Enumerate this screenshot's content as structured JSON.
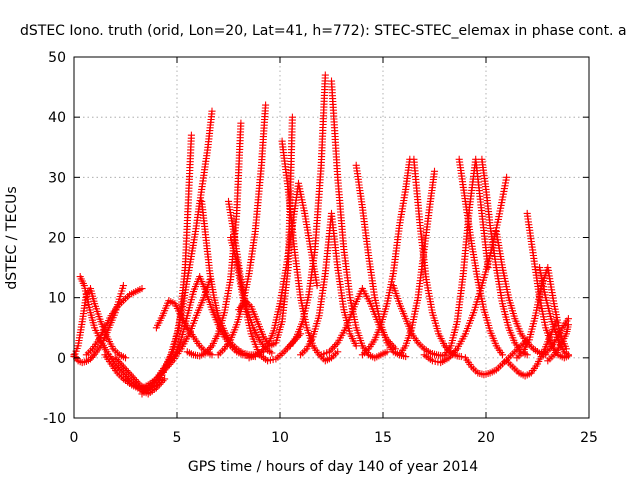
{
  "chart_data": {
    "type": "scatter",
    "title": "dSTEC Iono. truth (orid, Lon=20, Lat=41, h=772): STEC-STEC_elemax in phase cont. a",
    "xlabel": "GPS time / hours of day 140 of year 2014",
    "ylabel": "dSTEC  / TECUs",
    "xlim": [
      0,
      25
    ],
    "ylim": [
      -10,
      50
    ],
    "xticks": [
      0,
      5,
      10,
      15,
      20,
      25
    ],
    "yticks": [
      -10,
      0,
      10,
      20,
      30,
      40,
      50
    ],
    "xtick_labels": [
      "0",
      "5",
      "10",
      "15",
      "20",
      "25"
    ],
    "ytick_labels": [
      "-10",
      "0",
      "10",
      "20",
      "30",
      "40",
      "50"
    ],
    "grid": true,
    "legend": "none",
    "marker": "+",
    "color": "#ff0000",
    "series": [
      {
        "x": [
          0.0,
          0.2,
          0.4,
          0.6,
          0.8,
          1.0,
          1.3,
          1.6,
          2.0,
          2.4
        ],
        "y": [
          0.5,
          -0.5,
          -0.8,
          -0.6,
          -0.2,
          0.6,
          2.0,
          4.2,
          7.5,
          12.0
        ]
      },
      {
        "x": [
          0.0,
          0.2,
          0.4,
          0.6,
          0.8,
          1.0,
          1.3,
          1.6,
          1.9,
          2.2,
          2.5
        ],
        "y": [
          0.2,
          2.0,
          6.0,
          10.5,
          11.5,
          9.0,
          6.0,
          3.5,
          1.5,
          0.5,
          0.0
        ]
      },
      {
        "x": [
          0.3,
          0.5,
          0.8,
          1.0,
          1.3,
          1.6,
          2.0,
          2.4,
          2.8,
          3.2,
          3.6,
          4.0,
          4.4
        ],
        "y": [
          13.5,
          12.0,
          7.5,
          5.0,
          2.8,
          1.0,
          -1.0,
          -2.5,
          -4.0,
          -5.2,
          -6.0,
          -5.0,
          -3.5
        ]
      },
      {
        "x": [
          0.6,
          0.9,
          1.2,
          1.5,
          1.8,
          2.1,
          2.4,
          2.7,
          3.0,
          3.3
        ],
        "y": [
          0.5,
          1.5,
          3.0,
          5.0,
          7.0,
          8.5,
          9.5,
          10.5,
          11.0,
          11.5
        ]
      },
      {
        "x": [
          1.5,
          1.8,
          2.1,
          2.4,
          2.8,
          3.2,
          3.6,
          4.0,
          4.4,
          4.8,
          5.2,
          5.6,
          6.0,
          6.3,
          6.6
        ],
        "y": [
          0.5,
          -1.0,
          -2.5,
          -3.5,
          -4.5,
          -5.2,
          -4.5,
          -3.5,
          -2.0,
          -0.5,
          1.5,
          4.0,
          7.5,
          10.0,
          13.0
        ]
      },
      {
        "x": [
          2.0,
          2.4,
          2.8,
          3.2,
          3.6,
          4.0,
          4.4,
          4.7,
          5.0,
          5.3,
          5.6,
          5.9,
          6.2,
          6.5,
          6.7
        ],
        "y": [
          0.0,
          -1.5,
          -3.0,
          -4.5,
          -5.5,
          -4.5,
          -2.0,
          0.5,
          4.0,
          9.0,
          15.0,
          21.0,
          28.0,
          35.0,
          41.0
        ]
      },
      {
        "x": [
          3.3,
          3.6,
          3.9,
          4.2,
          4.5,
          4.8,
          5.1,
          5.4,
          5.7
        ],
        "y": [
          -6.0,
          -5.2,
          -4.0,
          -2.5,
          -1.0,
          1.0,
          5.0,
          15.0,
          37.0
        ]
      },
      {
        "x": [
          4.0,
          4.3,
          4.6,
          4.9,
          5.2,
          5.5,
          5.8,
          6.1,
          6.4,
          6.7
        ],
        "y": [
          5.0,
          7.0,
          9.5,
          9.0,
          7.0,
          5.0,
          3.5,
          2.0,
          1.0,
          0.5
        ]
      },
      {
        "x": [
          4.5,
          4.9,
          5.2,
          5.5,
          5.8,
          6.1,
          6.4,
          6.7,
          7.0,
          7.3,
          7.6,
          7.9,
          8.2,
          8.5,
          8.8
        ],
        "y": [
          -1.0,
          0.5,
          3.0,
          7.0,
          11.0,
          13.5,
          11.0,
          8.0,
          5.5,
          3.5,
          2.0,
          1.0,
          0.5,
          0.3,
          0.2
        ]
      },
      {
        "x": [
          5.5,
          5.8,
          6.1,
          6.4,
          6.7,
          7.0,
          7.3,
          7.6,
          7.9,
          8.1
        ],
        "y": [
          1.0,
          0.5,
          0.3,
          0.8,
          2.0,
          4.0,
          7.5,
          13.0,
          24.0,
          39.0
        ]
      },
      {
        "x": [
          6.2,
          6.4,
          6.6,
          6.8,
          7.0,
          7.3,
          7.6,
          7.9,
          8.2,
          8.5,
          8.8,
          9.2
        ],
        "y": [
          26.0,
          20.0,
          14.0,
          10.0,
          7.0,
          4.5,
          2.5,
          1.5,
          0.8,
          0.5,
          0.5,
          1.0
        ]
      },
      {
        "x": [
          7.0,
          7.3,
          7.6,
          7.9,
          8.2,
          8.5,
          8.8,
          9.1,
          9.3
        ],
        "y": [
          0.5,
          1.5,
          3.0,
          5.5,
          9.0,
          14.0,
          21.0,
          32.0,
          42.0
        ]
      },
      {
        "x": [
          7.5,
          7.8,
          8.1,
          8.4,
          8.7,
          9.0,
          9.3,
          9.6
        ],
        "y": [
          26.0,
          20.0,
          13.0,
          8.0,
          5.0,
          3.0,
          1.5,
          0.8
        ]
      },
      {
        "x": [
          7.6,
          7.9,
          8.2,
          8.6,
          9.0,
          9.4,
          9.8,
          10.2,
          10.6,
          11.0
        ],
        "y": [
          20.0,
          16.0,
          10.0,
          4.0,
          0.5,
          -0.5,
          -0.2,
          1.0,
          2.5,
          4.0
        ]
      },
      {
        "x": [
          8.0,
          8.3,
          8.6,
          8.9,
          9.2,
          9.5,
          9.8,
          10.1,
          10.4,
          10.6
        ],
        "y": [
          8.0,
          9.5,
          8.5,
          6.0,
          3.5,
          2.0,
          2.5,
          6.0,
          15.0,
          40.0
        ]
      },
      {
        "x": [
          8.5,
          8.8,
          9.1,
          9.4,
          9.7,
          10.0,
          10.3,
          10.6,
          10.9,
          11.2,
          11.5,
          11.8
        ],
        "y": [
          0.0,
          0.5,
          1.0,
          2.0,
          4.5,
          9.0,
          15.0,
          22.0,
          29.0,
          24.0,
          18.0,
          12.0
        ]
      },
      {
        "x": [
          10.1,
          10.4,
          10.7,
          11.0,
          11.3,
          11.6,
          11.9,
          12.2,
          12.5,
          12.8
        ],
        "y": [
          36.0,
          28.0,
          18.0,
          10.0,
          5.0,
          2.0,
          0.5,
          -0.5,
          0.0,
          1.0
        ]
      },
      {
        "x": [
          10.5,
          10.8,
          11.1,
          11.4,
          11.7,
          12.0,
          12.2
        ],
        "y": [
          2.0,
          3.5,
          6.0,
          10.5,
          18.0,
          32.0,
          47.0
        ]
      },
      {
        "x": [
          11.0,
          11.3,
          11.6,
          11.9,
          12.2,
          12.5,
          12.8,
          13.1,
          13.4,
          13.7
        ],
        "y": [
          0.5,
          1.5,
          3.5,
          7.0,
          14.0,
          24.0,
          15.0,
          8.0,
          4.0,
          2.0
        ]
      },
      {
        "x": [
          12.5,
          12.8,
          13.1,
          13.4,
          13.7,
          14.0,
          14.3,
          14.6,
          14.9,
          15.2
        ],
        "y": [
          46.0,
          30.0,
          18.0,
          10.0,
          5.0,
          2.0,
          0.5,
          0.0,
          0.5,
          1.0
        ]
      },
      {
        "x": [
          12.0,
          12.4,
          12.8,
          13.2,
          13.6,
          14.0,
          14.4,
          14.8,
          15.2,
          15.6
        ],
        "y": [
          0.5,
          1.0,
          2.5,
          5.0,
          8.5,
          11.5,
          9.0,
          5.5,
          3.0,
          1.5
        ]
      },
      {
        "x": [
          13.7,
          14.0,
          14.3,
          14.6,
          14.9,
          15.2,
          15.5,
          15.8,
          16.1
        ],
        "y": [
          32.0,
          25.0,
          17.0,
          10.0,
          5.5,
          2.5,
          1.0,
          0.5,
          0.2
        ]
      },
      {
        "x": [
          14.0,
          14.3,
          14.6,
          14.9,
          15.2,
          15.5,
          15.8,
          16.1,
          16.3
        ],
        "y": [
          0.5,
          1.5,
          3.0,
          5.5,
          9.0,
          14.0,
          22.0,
          28.0,
          33.0
        ]
      },
      {
        "x": [
          15.5,
          15.8,
          16.1,
          16.4,
          16.7,
          17.0,
          17.3,
          17.6,
          17.9
        ],
        "y": [
          12.0,
          9.0,
          6.5,
          4.0,
          2.5,
          1.5,
          0.8,
          0.5,
          0.3
        ]
      },
      {
        "x": [
          15.8,
          16.1,
          16.4,
          16.7,
          17.0,
          17.3,
          17.5
        ],
        "y": [
          0.5,
          2.0,
          5.0,
          10.0,
          18.0,
          26.0,
          31.0
        ]
      },
      {
        "x": [
          16.5,
          16.8,
          17.1,
          17.4,
          17.7,
          18.0,
          18.3,
          18.6,
          18.8
        ],
        "y": [
          33.0,
          22.0,
          13.0,
          7.5,
          4.0,
          2.0,
          0.8,
          0.3,
          0.2
        ]
      },
      {
        "x": [
          17.0,
          17.4,
          17.8,
          18.2,
          18.6,
          19.0,
          19.4,
          19.8,
          20.2,
          20.6,
          21.0
        ],
        "y": [
          0.5,
          -0.5,
          -0.8,
          0.0,
          1.5,
          4.0,
          7.5,
          12.0,
          17.0,
          23.0,
          30.0
        ]
      },
      {
        "x": [
          18.0,
          18.3,
          18.6,
          18.9,
          19.2,
          19.5,
          19.8,
          20.1
        ],
        "y": [
          0.5,
          2.0,
          6.0,
          14.0,
          25.0,
          33.0,
          24.0,
          15.0
        ]
      },
      {
        "x": [
          18.7,
          19.0,
          19.3,
          19.6,
          19.9,
          20.2,
          20.5,
          20.8
        ],
        "y": [
          33.0,
          26.0,
          19.0,
          13.0,
          8.0,
          4.5,
          2.0,
          0.5
        ]
      },
      {
        "x": [
          19.0,
          19.3,
          19.6,
          19.9,
          20.2,
          20.5,
          20.8,
          21.1,
          21.4,
          21.7,
          22.0
        ],
        "y": [
          0.0,
          -1.5,
          -2.5,
          -2.8,
          -2.5,
          -2.0,
          -1.0,
          0.0,
          1.0,
          2.0,
          3.0
        ]
      },
      {
        "x": [
          19.8,
          20.0,
          20.2,
          20.5,
          20.8,
          21.1,
          21.4,
          21.7,
          22.0
        ],
        "y": [
          33.0,
          28.0,
          22.0,
          15.0,
          9.0,
          5.0,
          2.5,
          1.0,
          0.5
        ]
      },
      {
        "x": [
          20.5,
          20.8,
          21.1,
          21.4,
          21.7,
          22.0,
          22.3,
          22.6,
          22.9
        ],
        "y": [
          21.0,
          15.0,
          10.0,
          6.5,
          4.0,
          2.5,
          1.5,
          0.8,
          0.5
        ]
      },
      {
        "x": [
          21.0,
          21.3,
          21.6,
          21.9,
          22.2,
          22.5,
          22.8,
          23.1,
          23.4
        ],
        "y": [
          -0.5,
          -1.5,
          -2.5,
          -3.0,
          -2.5,
          -1.0,
          1.0,
          3.5,
          6.0
        ]
      },
      {
        "x": [
          21.5,
          21.8,
          22.1,
          22.4,
          22.7,
          23.0,
          23.3,
          23.6,
          23.9
        ],
        "y": [
          0.0,
          1.0,
          3.0,
          7.0,
          12.0,
          15.0,
          9.0,
          4.0,
          1.5
        ]
      },
      {
        "x": [
          22.0,
          22.3,
          22.6,
          22.9,
          23.2,
          23.5,
          23.8,
          24.0
        ],
        "y": [
          24.0,
          17.0,
          10.0,
          5.0,
          2.0,
          0.5,
          0.0,
          0.3
        ]
      },
      {
        "x": [
          22.6,
          22.9,
          23.2,
          23.5,
          23.8,
          24.0
        ],
        "y": [
          15.0,
          10.0,
          6.0,
          3.0,
          1.0,
          0.5
        ]
      },
      {
        "x": [
          22.8,
          23.1,
          23.4,
          23.7,
          24.0
        ],
        "y": [
          0.5,
          1.5,
          3.0,
          5.0,
          6.5
        ]
      },
      {
        "x": [
          23.0,
          23.3,
          23.6,
          23.9,
          24.0
        ],
        "y": [
          -0.5,
          0.5,
          2.0,
          4.0,
          5.5
        ]
      }
    ]
  }
}
